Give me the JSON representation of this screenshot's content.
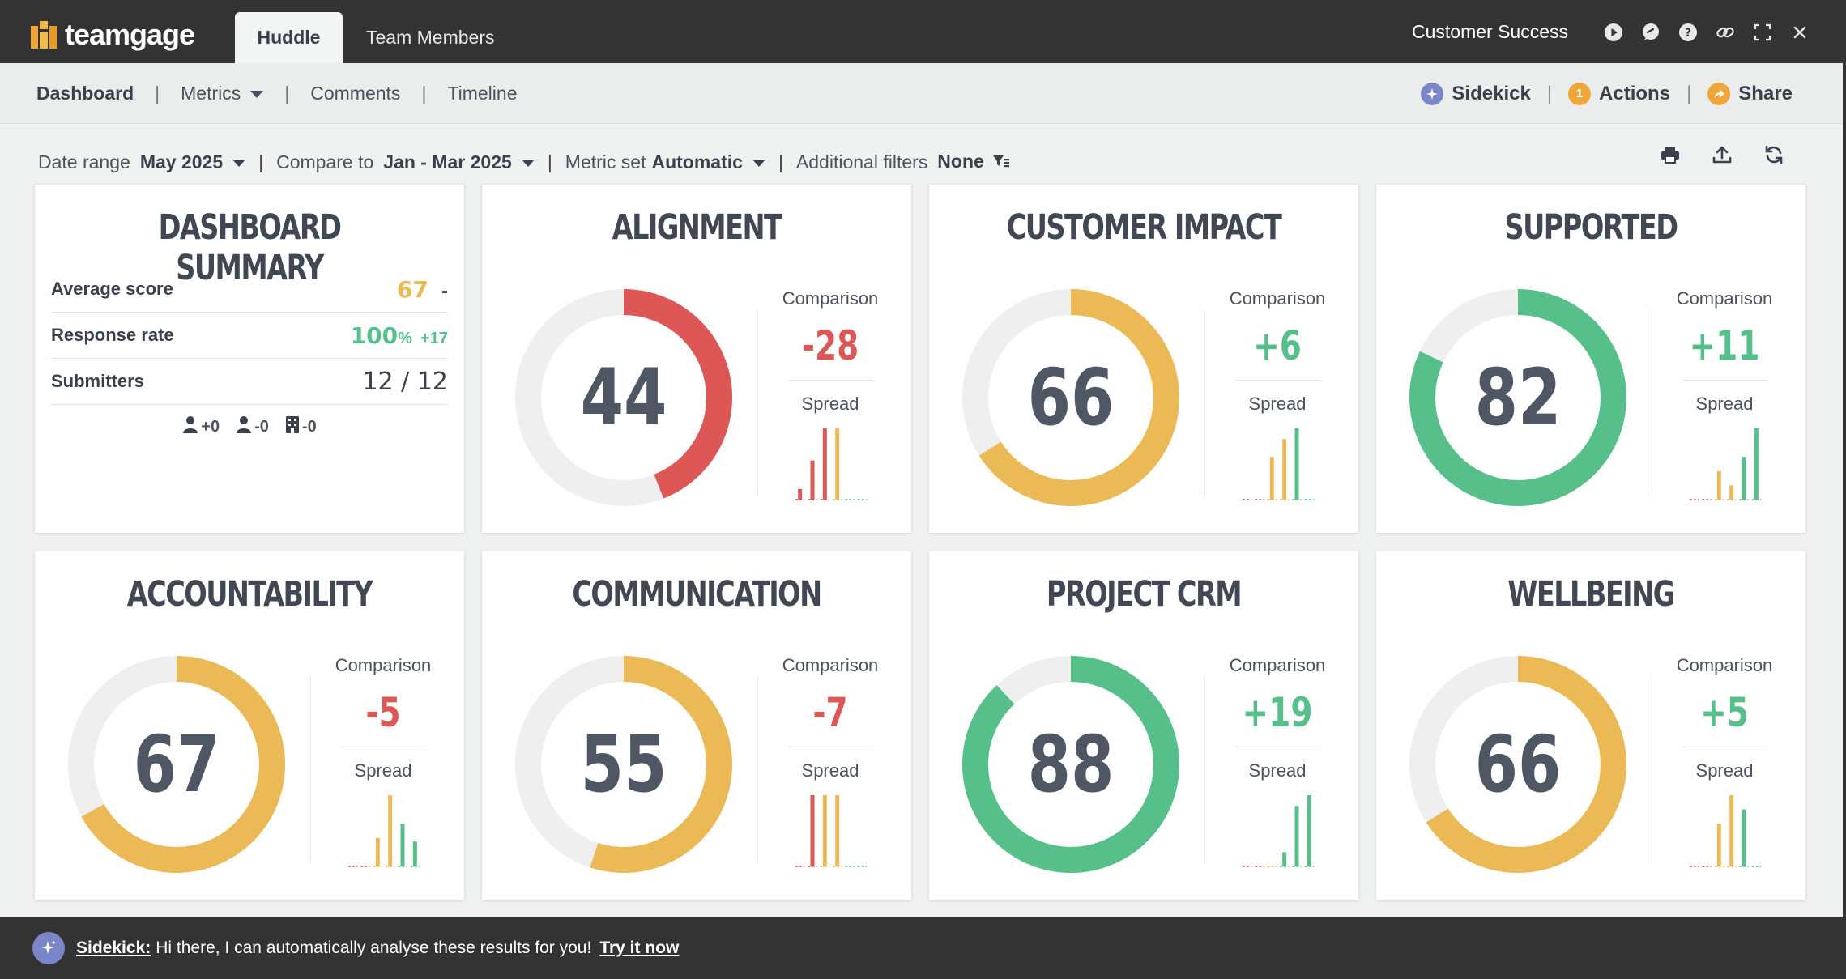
{
  "topbar": {
    "logo_text": "teamgage",
    "tabs": [
      {
        "label": "Huddle",
        "active": true
      },
      {
        "label": "Team Members",
        "active": false
      }
    ],
    "team_name": "Customer Success",
    "icons": [
      "play-icon",
      "chat-icon",
      "help-icon",
      "link-icon",
      "fullscreen-icon",
      "close-icon"
    ]
  },
  "subnav": {
    "items": [
      "Dashboard",
      "Metrics",
      "Comments",
      "Timeline"
    ],
    "sidekick_label": "Sidekick",
    "actions_label": "Actions",
    "actions_count": "1",
    "share_label": "Share"
  },
  "filters": {
    "date_range_label": "Date range",
    "date_range_value": "May 2025",
    "compare_label": "Compare to",
    "compare_value": "Jan - Mar 2025",
    "metric_set_label": "Metric set",
    "metric_set_value": "Automatic",
    "additional_label": "Additional filters",
    "additional_value": "None"
  },
  "colors": {
    "red": "#dd5757",
    "yellow": "#ebb955",
    "green": "#57c08a",
    "track": "#efefef"
  },
  "summary": {
    "title": "DASHBOARD SUMMARY",
    "rows": [
      {
        "label": "Average score",
        "value": "67",
        "delta": "-"
      },
      {
        "label": "Response rate",
        "value": "100",
        "unit": "%",
        "delta": "+17"
      },
      {
        "label": "Submitters",
        "value": "12 / 12",
        "delta": ""
      }
    ],
    "chips": [
      "+0",
      "-0",
      "-0"
    ]
  },
  "metrics": [
    {
      "title": "ALIGNMENT",
      "score": "44",
      "comparison_label": "Comparison",
      "comparison": "-28",
      "spread_label": "Spread",
      "color": "#dd5757",
      "cmp_color": "#dd5757",
      "spread": [
        {
          "v": 0.15,
          "c": "#dd5757"
        },
        {
          "v": 0.55,
          "c": "#dd5757"
        },
        {
          "v": 1.0,
          "c": "#dd5757"
        },
        {
          "v": 1.0,
          "c": "#ebb955"
        },
        {
          "v": 0,
          "c": "#57c08a"
        },
        {
          "v": 0,
          "c": "#57c08a"
        }
      ]
    },
    {
      "title": "CUSTOMER IMPACT",
      "score": "66",
      "comparison_label": "Comparison",
      "comparison": "+6",
      "spread_label": "Spread",
      "color": "#ebb955",
      "cmp_color": "#57c08a",
      "spread": [
        {
          "v": 0,
          "c": "#dd5757"
        },
        {
          "v": 0,
          "c": "#dd5757"
        },
        {
          "v": 0.6,
          "c": "#ebb955"
        },
        {
          "v": 0.85,
          "c": "#ebb955"
        },
        {
          "v": 1.0,
          "c": "#57c08a"
        },
        {
          "v": 0,
          "c": "#57c08a"
        }
      ]
    },
    {
      "title": "SUPPORTED",
      "score": "82",
      "comparison_label": "Comparison",
      "comparison": "+11",
      "spread_label": "Spread",
      "color": "#57c08a",
      "cmp_color": "#57c08a",
      "spread": [
        {
          "v": 0,
          "c": "#dd5757"
        },
        {
          "v": 0,
          "c": "#dd5757"
        },
        {
          "v": 0.4,
          "c": "#ebb955"
        },
        {
          "v": 0.2,
          "c": "#ebb955"
        },
        {
          "v": 0.6,
          "c": "#57c08a"
        },
        {
          "v": 1.0,
          "c": "#57c08a"
        }
      ]
    },
    {
      "title": "ACCOUNTABILITY",
      "score": "67",
      "comparison_label": "Comparison",
      "comparison": "-5",
      "spread_label": "Spread",
      "color": "#ebb955",
      "cmp_color": "#dd5757",
      "spread": [
        {
          "v": 0,
          "c": "#dd5757"
        },
        {
          "v": 0,
          "c": "#dd5757"
        },
        {
          "v": 0.4,
          "c": "#ebb955"
        },
        {
          "v": 1.0,
          "c": "#ebb955"
        },
        {
          "v": 0.6,
          "c": "#57c08a"
        },
        {
          "v": 0.35,
          "c": "#57c08a"
        }
      ]
    },
    {
      "title": "COMMUNICATION",
      "score": "55",
      "comparison_label": "Comparison",
      "comparison": "-7",
      "spread_label": "Spread",
      "color": "#ebb955",
      "cmp_color": "#dd5757",
      "spread": [
        {
          "v": 0,
          "c": "#dd5757"
        },
        {
          "v": 1.0,
          "c": "#dd5757"
        },
        {
          "v": 1.0,
          "c": "#ebb955"
        },
        {
          "v": 1.0,
          "c": "#ebb955"
        },
        {
          "v": 0,
          "c": "#57c08a"
        },
        {
          "v": 0,
          "c": "#57c08a"
        }
      ]
    },
    {
      "title": "PROJECT CRM",
      "score": "88",
      "comparison_label": "Comparison",
      "comparison": "+19",
      "spread_label": "Spread",
      "color": "#57c08a",
      "cmp_color": "#57c08a",
      "spread": [
        {
          "v": 0,
          "c": "#dd5757"
        },
        {
          "v": 0,
          "c": "#dd5757"
        },
        {
          "v": 0,
          "c": "#ebb955"
        },
        {
          "v": 0.2,
          "c": "#57c08a"
        },
        {
          "v": 0.85,
          "c": "#57c08a"
        },
        {
          "v": 1.0,
          "c": "#57c08a"
        }
      ]
    },
    {
      "title": "WELLBEING",
      "score": "66",
      "comparison_label": "Comparison",
      "comparison": "+5",
      "spread_label": "Spread",
      "color": "#ebb955",
      "cmp_color": "#57c08a",
      "spread": [
        {
          "v": 0,
          "c": "#dd5757"
        },
        {
          "v": 0,
          "c": "#dd5757"
        },
        {
          "v": 0.6,
          "c": "#ebb955"
        },
        {
          "v": 1.0,
          "c": "#ebb955"
        },
        {
          "v": 0.8,
          "c": "#57c08a"
        },
        {
          "v": 0,
          "c": "#57c08a"
        }
      ]
    }
  ],
  "banner": {
    "name": "Sidekick:",
    "message": "Hi there, I can automatically analyse these results for you!",
    "cta": "Try it now"
  }
}
